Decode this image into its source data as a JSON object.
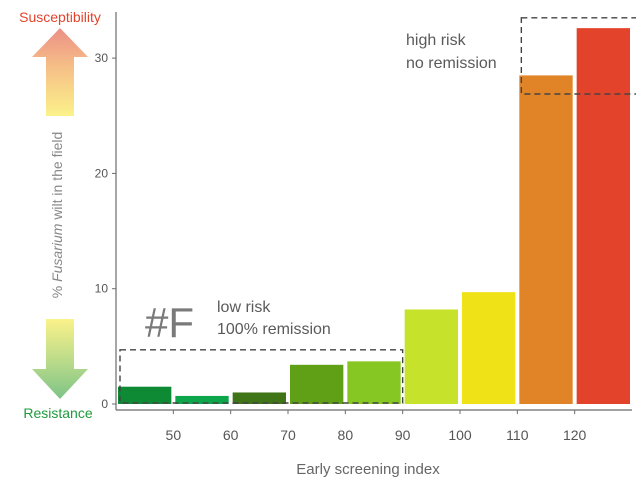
{
  "chart_data": {
    "type": "bar",
    "xlabel": "Early screening index",
    "ylabel_prefix": "% ",
    "ylabel_italic": "Fusarium",
    "ylabel_suffix": " wilt in the field",
    "xlim": [
      40,
      130
    ],
    "ylim": [
      0,
      34
    ],
    "x_ticks": [
      50,
      60,
      70,
      80,
      90,
      100,
      110,
      120
    ],
    "y_ticks": [
      0,
      10,
      20,
      30
    ],
    "bars": [
      {
        "x0": 40,
        "x1": 50,
        "value": 1.5,
        "color": "#0e8a34"
      },
      {
        "x0": 50,
        "x1": 60,
        "value": 0.7,
        "color": "#0ea64a"
      },
      {
        "x0": 60,
        "x1": 70,
        "value": 1.0,
        "color": "#3f7517"
      },
      {
        "x0": 70,
        "x1": 80,
        "value": 3.4,
        "color": "#5fa017"
      },
      {
        "x0": 80,
        "x1": 90,
        "value": 3.7,
        "color": "#86c723"
      },
      {
        "x0": 90,
        "x1": 100,
        "value": 8.2,
        "color": "#c7e22a"
      },
      {
        "x0": 100,
        "x1": 110,
        "value": 9.7,
        "color": "#efe217"
      },
      {
        "x0": 110,
        "x1": 120,
        "value": 28.5,
        "color": "#e08427"
      },
      {
        "x0": 120,
        "x1": 130,
        "value": 32.6,
        "color": "#e3432b"
      }
    ],
    "boxes": [
      {
        "x0": 40,
        "x1": 90,
        "y0": 0,
        "y1": 4.7
      },
      {
        "x0": 110,
        "x1": 131,
        "y0": 26.8,
        "y1": 33.5
      }
    ],
    "annotations": {
      "panel_tag": "#F",
      "low_risk_line1": "low risk",
      "low_risk_line2": "100% remission",
      "high_risk_line1": "high risk",
      "high_risk_line2": "no remission"
    },
    "scale_labels": {
      "top": "Susceptibility",
      "bottom": "Resistance"
    },
    "colors": {
      "susceptibility": "#e3432b",
      "resistance": "#1f9a3c",
      "axis": "#6b6b6b",
      "tick_text": "#555555"
    }
  }
}
